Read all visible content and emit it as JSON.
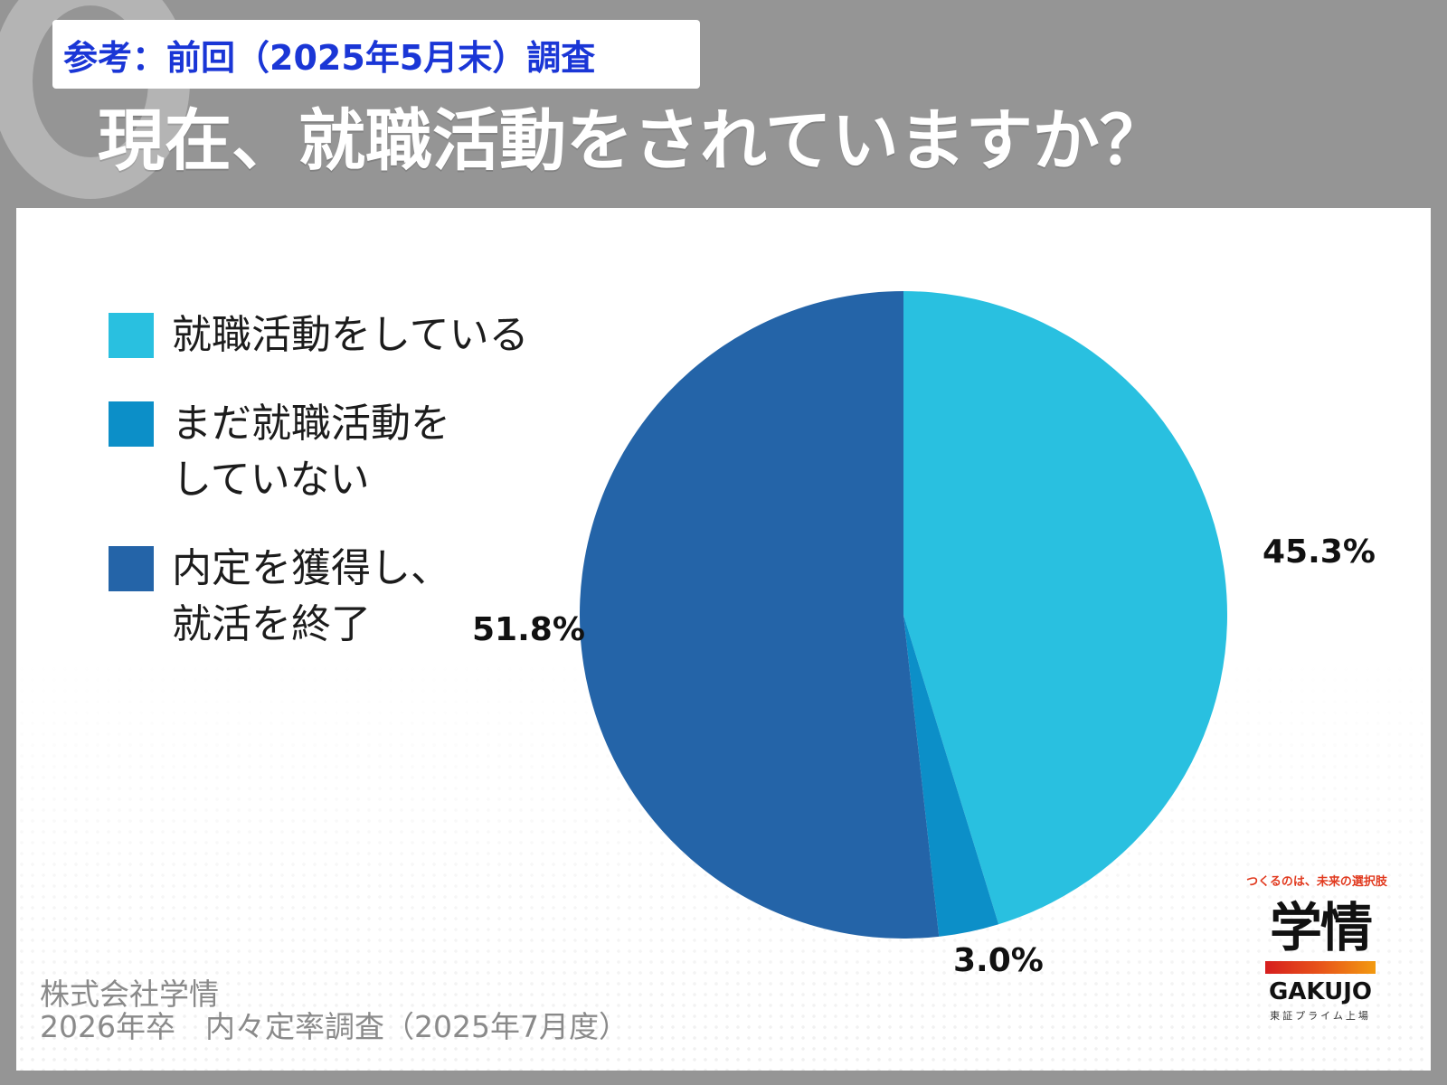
{
  "header": {
    "tag": "参考：前回（2025年5月末）調査",
    "question": "現在、就職活動をされていますか？"
  },
  "colors": {
    "background": "#959595",
    "tag_text": "#1a36d6",
    "series_1": "#29c0e0",
    "series_2": "#0c8fc8",
    "series_3": "#2464a8"
  },
  "chart_data": {
    "type": "pie",
    "start_angle": "12 o'clock",
    "direction": "clockwise",
    "slices": [
      {
        "name": "就職活動をしている",
        "value": 45.3,
        "label": "45.3%",
        "color": "#29c0e0"
      },
      {
        "name": "まだ就職活動をしていない",
        "value": 3.0,
        "label": "3.0%",
        "color": "#0c8fc8"
      },
      {
        "name": "内定を獲得し、就活を終了",
        "value": 51.8,
        "label": "51.8%",
        "color": "#2464a8"
      }
    ],
    "legend": {
      "placement": "left",
      "items": [
        {
          "line1": "就職活動をしている",
          "line2": ""
        },
        {
          "line1": "まだ就職活動を",
          "line2": "していない"
        },
        {
          "line1": "内定を獲得し、",
          "line2": "就活を終了"
        }
      ]
    }
  },
  "logo": {
    "tagline": "つくるのは、未来の選択肢",
    "mark": "学情",
    "name_en": "GAKUJO",
    "sub": "東証プライム上場"
  },
  "source": {
    "line1": "株式会社学情",
    "line2": "2026年卒　内々定率調査（2025年7月度）"
  }
}
